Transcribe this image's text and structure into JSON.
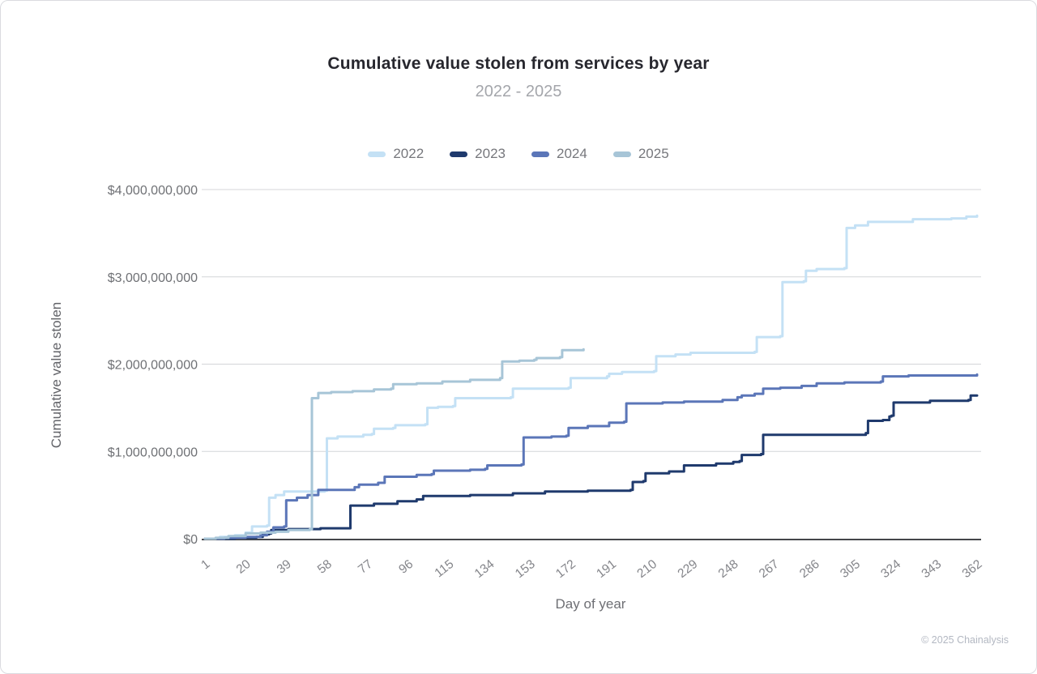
{
  "header": {
    "title": "Cumulative value stolen from services by year",
    "subtitle": "2022 - 2025"
  },
  "footer": {
    "copyright": "© 2025 Chainalysis"
  },
  "chart_data": {
    "type": "line",
    "title": "Cumulative value stolen from services by year",
    "subtitle": "2022 - 2025",
    "xlabel": "Day of year",
    "ylabel": "Cumulative value stolen",
    "values_unit": "USD billions",
    "line_style": "step-after",
    "grid": "horizontal",
    "legend_position": "top",
    "xlim": [
      1,
      362
    ],
    "ylim": [
      0,
      4
    ],
    "x_ticks": [
      1,
      20,
      39,
      58,
      77,
      96,
      115,
      134,
      153,
      172,
      191,
      210,
      229,
      248,
      267,
      286,
      305,
      324,
      343,
      362
    ],
    "y_ticks": [
      {
        "value": 0,
        "label": "$0"
      },
      {
        "value": 1,
        "label": "$1,000,000,000"
      },
      {
        "value": 2,
        "label": "$2,000,000,000"
      },
      {
        "value": 3,
        "label": "$3,000,000,000"
      },
      {
        "value": 4,
        "label": "$4,000,000,000"
      }
    ],
    "series": [
      {
        "name": "2022",
        "color": "#c4e1f5",
        "points": [
          [
            1,
            0
          ],
          [
            8,
            0.02
          ],
          [
            15,
            0.04
          ],
          [
            20,
            0.07
          ],
          [
            23,
            0.14
          ],
          [
            30,
            0.15
          ],
          [
            31,
            0.47
          ],
          [
            34,
            0.5
          ],
          [
            38,
            0.54
          ],
          [
            57,
            0.55
          ],
          [
            58,
            1.15
          ],
          [
            63,
            1.17
          ],
          [
            75,
            1.19
          ],
          [
            79,
            1.2
          ],
          [
            80,
            1.26
          ],
          [
            89,
            1.27
          ],
          [
            90,
            1.3
          ],
          [
            104,
            1.31
          ],
          [
            105,
            1.5
          ],
          [
            110,
            1.51
          ],
          [
            117,
            1.52
          ],
          [
            118,
            1.61
          ],
          [
            144,
            1.62
          ],
          [
            145,
            1.72
          ],
          [
            171,
            1.73
          ],
          [
            172,
            1.84
          ],
          [
            189,
            1.86
          ],
          [
            190,
            1.89
          ],
          [
            196,
            1.91
          ],
          [
            211,
            1.92
          ],
          [
            212,
            2.09
          ],
          [
            221,
            2.11
          ],
          [
            228,
            2.13
          ],
          [
            258,
            2.14
          ],
          [
            259,
            2.31
          ],
          [
            270,
            2.32
          ],
          [
            271,
            2.94
          ],
          [
            281,
            2.95
          ],
          [
            282,
            3.07
          ],
          [
            287,
            3.09
          ],
          [
            300,
            3.1
          ],
          [
            301,
            3.56
          ],
          [
            305,
            3.59
          ],
          [
            311,
            3.63
          ],
          [
            332,
            3.66
          ],
          [
            350,
            3.67
          ],
          [
            357,
            3.69
          ],
          [
            362,
            3.7
          ]
        ]
      },
      {
        "name": "2023",
        "color": "#1f3a6d",
        "points": [
          [
            1,
            0
          ],
          [
            15,
            0.01
          ],
          [
            25,
            0.02
          ],
          [
            28,
            0.05
          ],
          [
            31,
            0.06
          ],
          [
            32,
            0.1
          ],
          [
            40,
            0.11
          ],
          [
            55,
            0.12
          ],
          [
            68,
            0.12
          ],
          [
            69,
            0.38
          ],
          [
            80,
            0.4
          ],
          [
            91,
            0.43
          ],
          [
            100,
            0.45
          ],
          [
            103,
            0.49
          ],
          [
            125,
            0.5
          ],
          [
            145,
            0.52
          ],
          [
            160,
            0.54
          ],
          [
            180,
            0.55
          ],
          [
            200,
            0.56
          ],
          [
            201,
            0.65
          ],
          [
            206,
            0.66
          ],
          [
            207,
            0.75
          ],
          [
            218,
            0.77
          ],
          [
            225,
            0.84
          ],
          [
            240,
            0.86
          ],
          [
            248,
            0.88
          ],
          [
            251,
            0.89
          ],
          [
            252,
            0.96
          ],
          [
            261,
            0.97
          ],
          [
            262,
            1.19
          ],
          [
            310,
            1.21
          ],
          [
            311,
            1.35
          ],
          [
            318,
            1.36
          ],
          [
            321,
            1.4
          ],
          [
            322,
            1.41
          ],
          [
            323,
            1.56
          ],
          [
            340,
            1.58
          ],
          [
            358,
            1.59
          ],
          [
            359,
            1.64
          ],
          [
            362,
            1.64
          ]
        ]
      },
      {
        "name": "2024",
        "color": "#5b76b8",
        "points": [
          [
            1,
            0
          ],
          [
            10,
            0.01
          ],
          [
            20,
            0.02
          ],
          [
            27,
            0.04
          ],
          [
            30,
            0.08
          ],
          [
            33,
            0.13
          ],
          [
            38,
            0.14
          ],
          [
            39,
            0.44
          ],
          [
            44,
            0.47
          ],
          [
            49,
            0.5
          ],
          [
            54,
            0.56
          ],
          [
            71,
            0.59
          ],
          [
            73,
            0.62
          ],
          [
            82,
            0.64
          ],
          [
            85,
            0.71
          ],
          [
            100,
            0.73
          ],
          [
            107,
            0.74
          ],
          [
            108,
            0.78
          ],
          [
            125,
            0.79
          ],
          [
            132,
            0.8
          ],
          [
            133,
            0.84
          ],
          [
            149,
            0.85
          ],
          [
            150,
            1.16
          ],
          [
            163,
            1.17
          ],
          [
            170,
            1.18
          ],
          [
            171,
            1.27
          ],
          [
            180,
            1.29
          ],
          [
            190,
            1.33
          ],
          [
            197,
            1.34
          ],
          [
            198,
            1.55
          ],
          [
            215,
            1.56
          ],
          [
            225,
            1.57
          ],
          [
            243,
            1.59
          ],
          [
            250,
            1.62
          ],
          [
            252,
            1.64
          ],
          [
            258,
            1.66
          ],
          [
            262,
            1.72
          ],
          [
            270,
            1.73
          ],
          [
            280,
            1.75
          ],
          [
            287,
            1.78
          ],
          [
            300,
            1.79
          ],
          [
            317,
            1.8
          ],
          [
            318,
            1.86
          ],
          [
            330,
            1.87
          ],
          [
            362,
            1.88
          ]
        ]
      },
      {
        "name": "2025",
        "color": "#a7c5d7",
        "points": [
          [
            1,
            0
          ],
          [
            6,
            0.01
          ],
          [
            12,
            0.03
          ],
          [
            20,
            0.06
          ],
          [
            27,
            0.07
          ],
          [
            34,
            0.08
          ],
          [
            40,
            0.1
          ],
          [
            50,
            0.11
          ],
          [
            51,
            1.61
          ],
          [
            54,
            1.67
          ],
          [
            60,
            1.68
          ],
          [
            70,
            1.69
          ],
          [
            80,
            1.71
          ],
          [
            88,
            1.72
          ],
          [
            89,
            1.77
          ],
          [
            100,
            1.78
          ],
          [
            112,
            1.8
          ],
          [
            125,
            1.82
          ],
          [
            139,
            1.84
          ],
          [
            140,
            2.03
          ],
          [
            148,
            2.04
          ],
          [
            155,
            2.05
          ],
          [
            156,
            2.07
          ],
          [
            167,
            2.08
          ],
          [
            168,
            2.16
          ],
          [
            178,
            2.17
          ]
        ]
      }
    ]
  }
}
